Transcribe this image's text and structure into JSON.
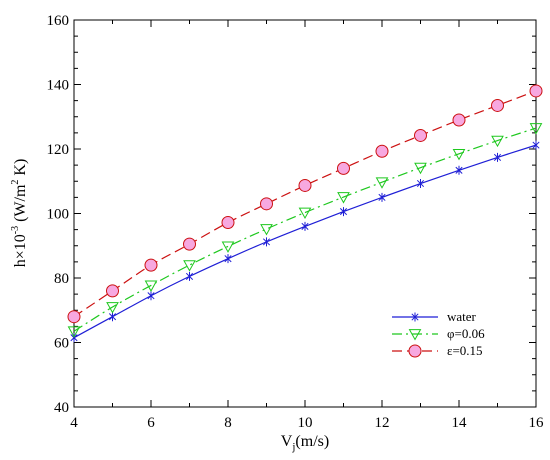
{
  "chart_data": {
    "type": "line",
    "title": "",
    "xlabel": {
      "main": "V",
      "sub": "j",
      "rest": "(m/s)"
    },
    "ylabel": {
      "a": "h×10",
      "exp1": "-3",
      "b": " (W/m",
      "exp2": "2",
      "c": " K)"
    },
    "xlim": [
      4,
      16
    ],
    "ylim": [
      40,
      160
    ],
    "xticks": [
      4,
      6,
      8,
      10,
      12,
      14,
      16
    ],
    "yticks": [
      40,
      60,
      80,
      100,
      120,
      140,
      160
    ],
    "grid": false,
    "legend_position": "right",
    "series": [
      {
        "name": "water",
        "color": "#1f1fd6",
        "line_style": "solid",
        "marker": "asterisk",
        "x": [
          4,
          5,
          6,
          7,
          8,
          9,
          10,
          11,
          12,
          13,
          14,
          15,
          16
        ],
        "y": [
          61.5,
          68.0,
          74.5,
          80.5,
          86.0,
          91.2,
          96.0,
          100.6,
          105.0,
          109.3,
          113.4,
          117.4,
          121.2
        ]
      },
      {
        "name": "φ=0.06",
        "color": "#1ec81e",
        "line_style": "dashdot",
        "marker": "triangle-down",
        "x": [
          4,
          5,
          6,
          7,
          8,
          9,
          10,
          11,
          12,
          13,
          14,
          15,
          16
        ],
        "y": [
          63.5,
          71.0,
          77.7,
          84.0,
          89.8,
          95.2,
          100.3,
          105.1,
          109.7,
          114.2,
          118.5,
          122.6,
          126.5
        ]
      },
      {
        "name": "ε=0.15",
        "color": "#cc1111",
        "line_style": "dashed",
        "marker": "circle",
        "marker_fill": "#f7a8e0",
        "x": [
          4,
          5,
          6,
          7,
          8,
          9,
          10,
          11,
          12,
          13,
          14,
          15,
          16
        ],
        "y": [
          68.0,
          76.0,
          84.0,
          90.5,
          97.2,
          103.0,
          108.7,
          114.0,
          119.3,
          124.2,
          129.0,
          133.5,
          138.0
        ]
      }
    ]
  }
}
